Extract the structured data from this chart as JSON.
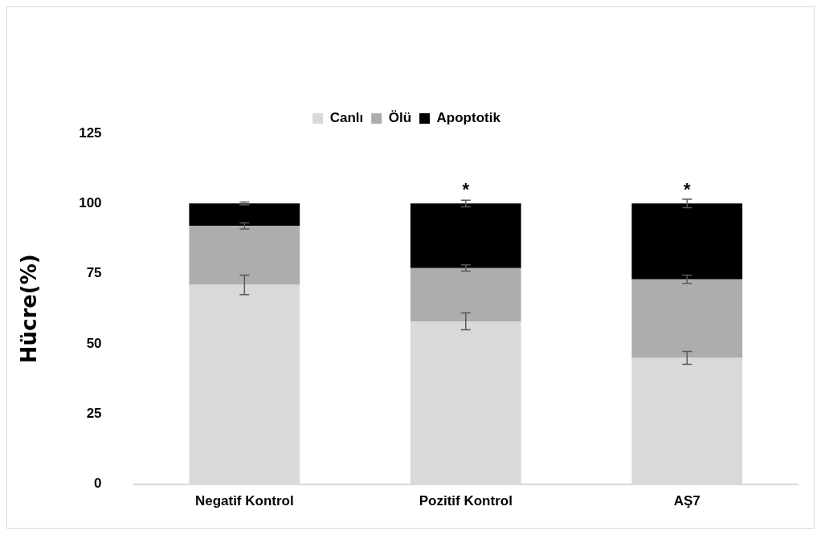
{
  "chart_data": {
    "type": "bar",
    "stacked": true,
    "ylabel": "Hücre(%)",
    "categories": [
      "Negatif Kontrol",
      "Pozitif Kontrol",
      "AŞ7"
    ],
    "series": [
      {
        "name": "Canlı",
        "color": "#d9d9d9",
        "values": [
          71,
          58,
          45
        ],
        "errors": [
          3.5,
          3,
          2.3
        ]
      },
      {
        "name": "Ölü",
        "color": "#aeadab",
        "values": [
          21,
          19,
          28
        ],
        "errors": [
          1.1,
          1.1,
          1.5
        ]
      },
      {
        "name": "Apoptotik",
        "color": "#000000",
        "values": [
          8,
          23,
          27
        ],
        "errors": [
          0.5,
          1.2,
          1.5
        ]
      }
    ],
    "ylim": [
      0,
      125
    ],
    "yticks": [
      0,
      25,
      50,
      75,
      100,
      125
    ],
    "grid": false,
    "legend": "top",
    "annotations": [
      {
        "text": "*",
        "x": "Pozitif Kontrol",
        "y": 100
      },
      {
        "text": "*",
        "x": "AŞ7",
        "y": 100
      }
    ]
  }
}
